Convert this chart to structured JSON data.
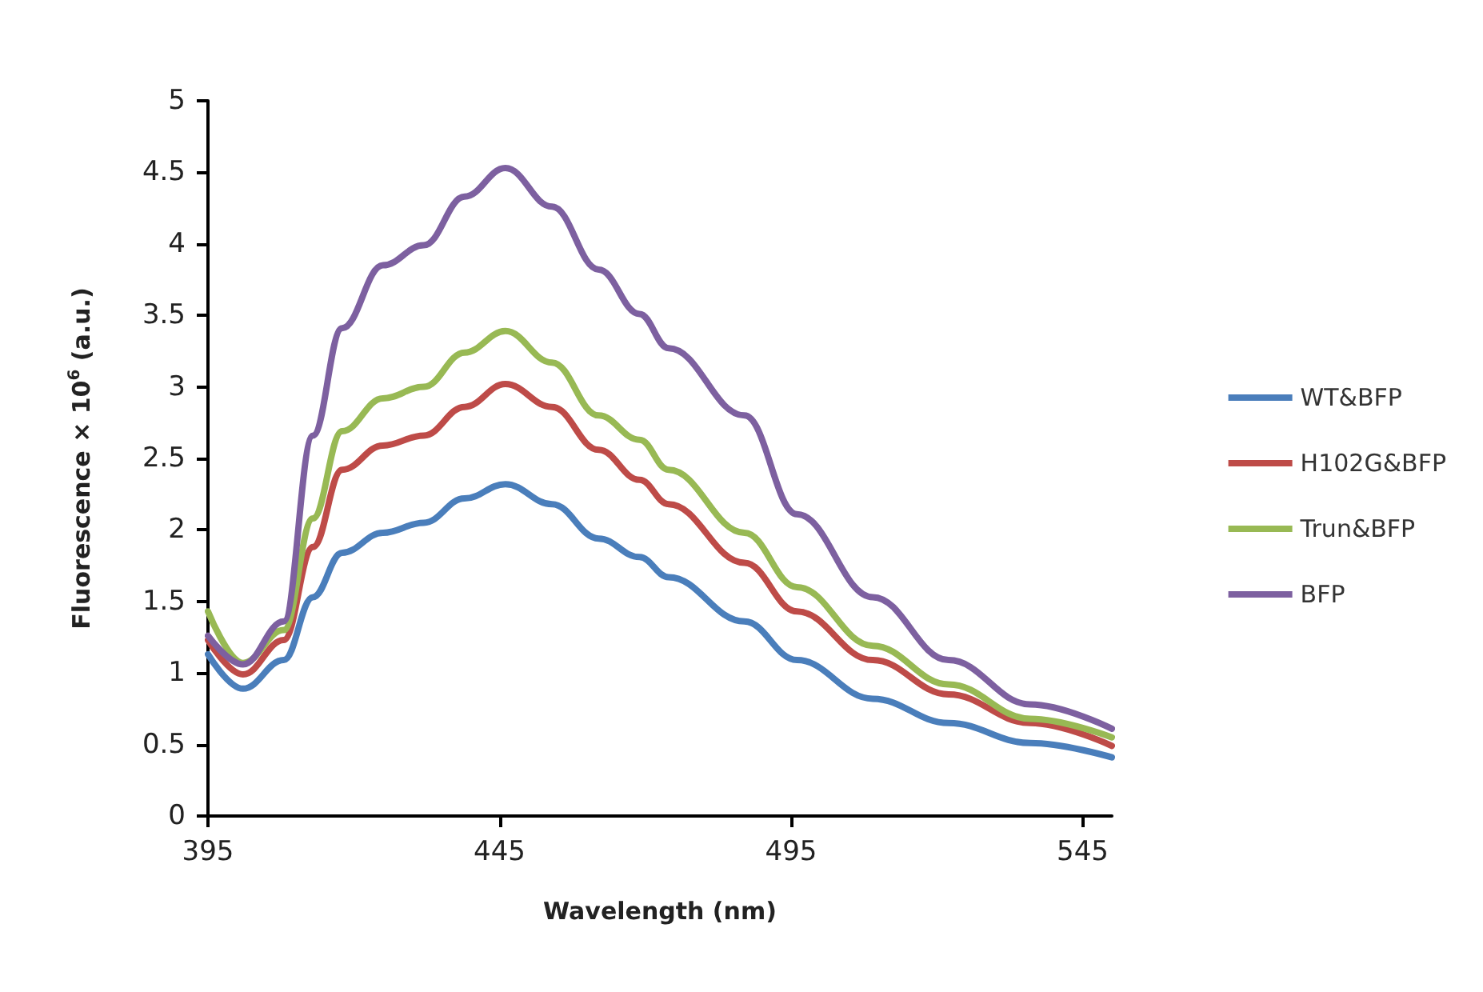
{
  "chart_data": {
    "type": "line",
    "xlabel": "Wavelength (nm)",
    "ylabel": "Fluorescence × 10$^{6}$ (a.u.)",
    "x": [
      395,
      401,
      408,
      413,
      418,
      425,
      432,
      439,
      446,
      454,
      462,
      469,
      474,
      487,
      496,
      509,
      522,
      536,
      550
    ],
    "series": [
      {
        "name": "WT&BFP",
        "color": "#4a7ebb",
        "values": [
          1.13,
          0.89,
          1.09,
          1.53,
          1.84,
          1.98,
          2.05,
          2.22,
          2.32,
          2.18,
          1.94,
          1.81,
          1.67,
          1.36,
          1.09,
          0.82,
          0.65,
          0.51,
          0.41
        ]
      },
      {
        "name": "H102G&BFP",
        "color": "#be4b48",
        "values": [
          1.23,
          0.99,
          1.23,
          1.88,
          2.42,
          2.59,
          2.66,
          2.86,
          3.02,
          2.86,
          2.56,
          2.35,
          2.18,
          1.77,
          1.43,
          1.09,
          0.85,
          0.65,
          0.49
        ]
      },
      {
        "name": "Trun&BFP",
        "color": "#98b954",
        "values": [
          1.43,
          1.07,
          1.3,
          2.08,
          2.69,
          2.92,
          3.0,
          3.24,
          3.39,
          3.17,
          2.8,
          2.63,
          2.42,
          1.98,
          1.6,
          1.19,
          0.92,
          0.68,
          0.55
        ]
      },
      {
        "name": "BFP",
        "color": "#7d60a0",
        "values": [
          1.26,
          1.06,
          1.36,
          2.66,
          3.41,
          3.85,
          3.99,
          4.33,
          4.53,
          4.26,
          3.82,
          3.51,
          3.27,
          2.8,
          2.11,
          1.53,
          1.09,
          0.78,
          0.61
        ]
      }
    ],
    "xlim": [
      395,
      550
    ],
    "xticks": [
      395,
      445,
      495,
      545
    ],
    "ylim": [
      0,
      5
    ],
    "yticks": [
      0,
      0.5,
      1,
      1.5,
      2,
      2.5,
      3,
      3.5,
      4,
      4.5,
      5
    ],
    "grid": false,
    "legend": "right",
    "marker": "none",
    "line_style": "solid"
  }
}
